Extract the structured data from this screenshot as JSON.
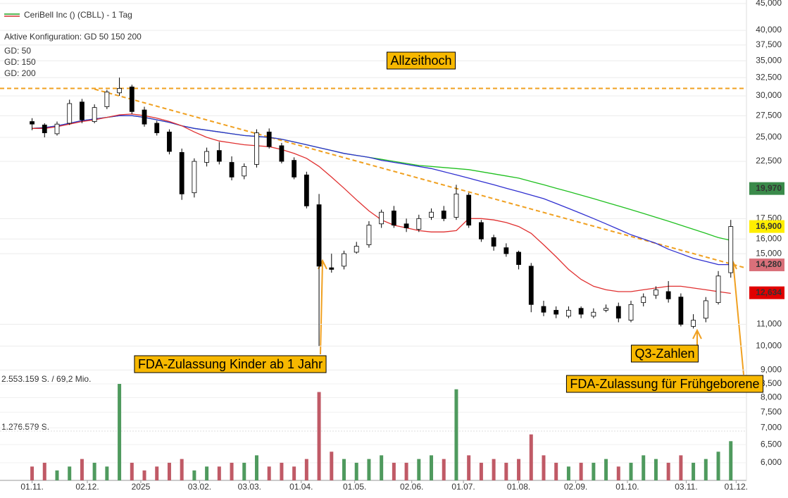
{
  "chart_data": {
    "type": "candlestick",
    "title": "CeriBell Inc () (CBLL) - 1 Tag",
    "subtitle": "Aktive Konfiguration: GD 50 150 200",
    "x": [
      0,
      7,
      14,
      21,
      28,
      35,
      42,
      49,
      56,
      63,
      70,
      77,
      84,
      91,
      98,
      105,
      112,
      119,
      126,
      133,
      140,
      147,
      154,
      161,
      168,
      175,
      182,
      189,
      196,
      203,
      210,
      217,
      224,
      231,
      238,
      245,
      252,
      259,
      266,
      273,
      280,
      287,
      294,
      301,
      308,
      315,
      322,
      329,
      336,
      343,
      350,
      357,
      364,
      371,
      378,
      385,
      392
    ],
    "open": [
      26.8,
      26.4,
      25.4,
      26.6,
      29.2,
      26.8,
      28.6,
      30.4,
      31.2,
      28.2,
      26.6,
      25.6,
      23.4,
      19.6,
      22.4,
      23.6,
      22.4,
      21.1,
      22.2,
      25.6,
      24.1,
      22.6,
      21.2,
      18.6,
      14.1,
      14.2,
      15.1,
      15.6,
      17.1,
      18.1,
      17.1,
      16.7,
      17.6,
      18.1,
      17.6,
      19.4,
      17.2,
      16.1,
      15.4,
      15.1,
      14.2,
      11.9,
      11.7,
      11.4,
      11.8,
      11.4,
      11.7,
      11.9,
      11.2,
      12.1,
      12.5,
      12.7,
      12.4,
      10.9,
      11.3,
      12.1,
      13.8
    ],
    "high": [
      27.2,
      26.6,
      26.8,
      29.5,
      29.6,
      28.9,
      30.8,
      32.5,
      31.5,
      28.6,
      26.9,
      25.9,
      23.8,
      22.8,
      23.9,
      24.5,
      23,
      22.3,
      25.9,
      26,
      24.4,
      22.9,
      21.5,
      19.5,
      15,
      15.2,
      15.8,
      17.3,
      18.2,
      18.5,
      17.5,
      17.8,
      18.3,
      18.5,
      20.3,
      19.6,
      17.4,
      16.3,
      15.7,
      15.2,
      14.4,
      12.2,
      11.9,
      11.9,
      11.9,
      11.8,
      12,
      12.1,
      12.2,
      12.6,
      13,
      13.3,
      12.6,
      11.5,
      12.4,
      13.9,
      17.4
    ],
    "low": [
      25.8,
      25,
      25.2,
      26.4,
      26.6,
      26.6,
      28.3,
      30,
      27.7,
      26.2,
      25.2,
      23.2,
      19,
      19.2,
      22,
      22.2,
      20.7,
      20.8,
      21.9,
      23.8,
      22.3,
      20.8,
      18.3,
      10,
      13.8,
      14,
      15,
      15.4,
      16.8,
      16.8,
      16.5,
      16.5,
      17.4,
      17.3,
      17.4,
      16.8,
      15.8,
      15.2,
      14.8,
      14,
      11.6,
      11.4,
      11.3,
      11.3,
      11.3,
      11.3,
      11.6,
      11.1,
      11.1,
      11.9,
      12.3,
      12.1,
      10.9,
      10.8,
      11.1,
      12,
      13.5
    ],
    "close": [
      26.5,
      25.5,
      26.5,
      29,
      27,
      28.5,
      30.5,
      31,
      28,
      26.5,
      25.5,
      23.5,
      19.5,
      22.5,
      23.5,
      22.5,
      21,
      22,
      25.5,
      24,
      22.5,
      21,
      18.5,
      14.2,
      14,
      15,
      15.5,
      17,
      18,
      17,
      16.8,
      17.5,
      18,
      17.5,
      19.5,
      17,
      16,
      15.5,
      15,
      14.3,
      12,
      11.6,
      11.5,
      11.7,
      11.5,
      11.6,
      11.8,
      11.3,
      12,
      12.4,
      12.8,
      12.3,
      11,
      11.2,
      12.2,
      13.6,
      16.9
    ],
    "up_color": "#ffffff",
    "down_color": "#000000",
    "series": [
      {
        "name": "GD: 50",
        "color": "#e03030",
        "values": [
          26,
          26,
          26.2,
          26.5,
          26.8,
          27,
          27.3,
          27.6,
          27.7,
          27.5,
          27.2,
          26.8,
          26.3,
          25.6,
          25,
          24.6,
          24.4,
          24.2,
          24.1,
          24,
          23.7,
          23.3,
          22.8,
          22,
          21,
          20,
          19,
          18.1,
          17.4,
          17,
          16.8,
          16.6,
          16.5,
          16.5,
          16.6,
          17.5,
          17.5,
          17.4,
          17.2,
          16.9,
          16.4,
          15.6,
          14.8,
          14,
          13.4,
          13,
          12.8,
          12.7,
          12.7,
          12.8,
          12.9,
          13,
          13,
          12.9,
          12.8,
          12.7,
          12.6
        ]
      },
      {
        "name": "GD: 150",
        "color": "#3030d0",
        "values": [
          26,
          26.1,
          26.3,
          26.6,
          26.9,
          27.1,
          27.3,
          27.5,
          27.5,
          27.3,
          27,
          26.7,
          26.3,
          26,
          25.8,
          25.6,
          25.4,
          25.2,
          25.1,
          25,
          24.8,
          24.5,
          24.2,
          23.9,
          23.6,
          23.3,
          23.1,
          22.9,
          22.6,
          22.4,
          22.2,
          22,
          21.8,
          21.5,
          21.2,
          20.9,
          20.6,
          20.3,
          20,
          19.7,
          19.4,
          19.1,
          18.7,
          18.3,
          17.9,
          17.5,
          17.1,
          16.7,
          16.3,
          16,
          15.7,
          15.3,
          15,
          14.7,
          14.5,
          14.3,
          14.3
        ]
      },
      {
        "name": "GD: 200",
        "color": "#20c020",
        "values": [
          26,
          26.1,
          26.3,
          26.6,
          26.9,
          27.1,
          27.3,
          27.5,
          27.5,
          27.3,
          27,
          26.7,
          26.3,
          26,
          25.8,
          25.6,
          25.4,
          25.2,
          25.1,
          25,
          24.8,
          24.5,
          24.2,
          23.9,
          23.6,
          23.3,
          23.1,
          22.9,
          22.7,
          22.5,
          22.3,
          22.1,
          22,
          21.9,
          21.8,
          21.7,
          21.5,
          21.3,
          21.1,
          20.9,
          20.6,
          20.3,
          20,
          19.7,
          19.4,
          19.1,
          18.8,
          18.5,
          18.2,
          17.9,
          17.6,
          17.3,
          17,
          16.7,
          16.4,
          16.1,
          15.9
        ]
      }
    ],
    "log_y": true,
    "ylim": [
      8.6,
      45.7
    ],
    "yticks": [
      {
        "value": 9,
        "label": "9,000"
      },
      {
        "value": 10,
        "label": "10,000"
      },
      {
        "value": 11,
        "label": "11,000"
      },
      {
        "value": 15,
        "label": "15,000"
      },
      {
        "value": 16,
        "label": "16,000"
      },
      {
        "value": 17.5,
        "label": "17,500"
      },
      {
        "value": 22.5,
        "label": "22,500"
      },
      {
        "value": 25,
        "label": "25,000"
      },
      {
        "value": 27.5,
        "label": "27,500"
      },
      {
        "value": 30,
        "label": "30,000"
      },
      {
        "value": 32.5,
        "label": "32,500"
      },
      {
        "value": 35,
        "label": "35,000"
      },
      {
        "value": 37.5,
        "label": "37,500"
      },
      {
        "value": 40,
        "label": "40,000"
      },
      {
        "value": 45,
        "label": "45,000"
      }
    ],
    "grid": true,
    "xlim": [
      -18,
      400
    ],
    "xticks": [
      {
        "value": 0,
        "label": "01.11."
      },
      {
        "value": 31,
        "label": "02.12."
      },
      {
        "value": 61,
        "label": "2025"
      },
      {
        "value": 94,
        "label": "03.02."
      },
      {
        "value": 122,
        "label": "03.03."
      },
      {
        "value": 151,
        "label": "01.04."
      },
      {
        "value": 181,
        "label": "01.05."
      },
      {
        "value": 213,
        "label": "02.06."
      },
      {
        "value": 242,
        "label": "01.07."
      },
      {
        "value": 273,
        "label": "01.08."
      },
      {
        "value": 305,
        "label": "02.09."
      },
      {
        "value": 334,
        "label": "01.10."
      },
      {
        "value": 367,
        "label": "03.11."
      },
      {
        "value": 395,
        "label": "01.12."
      }
    ],
    "hline": {
      "value": 31,
      "color": "#f0a020"
    },
    "trendline": {
      "x": [
        35,
        400
      ],
      "y": [
        30.9,
        14.1
      ],
      "color": "#f0a020"
    },
    "price_tags": [
      {
        "value": 19.97,
        "label": "19,970",
        "color": "#3a8a4a"
      },
      {
        "value": 16.9,
        "label": "16,900",
        "color": "#ffee00"
      },
      {
        "value": 14.28,
        "label": "14,280",
        "color": "#d9707a"
      },
      {
        "value": 12.634,
        "label": "12,634",
        "color": "#e00000"
      }
    ],
    "volume": {
      "values": [
        5.9,
        6.0,
        5.8,
        5.9,
        6.1,
        6.0,
        5.9,
        8.5,
        6.0,
        5.8,
        5.9,
        6.0,
        6.1,
        5.8,
        5.9,
        5.9,
        6.0,
        6.0,
        6.2,
        5.9,
        6.0,
        5.9,
        6.1,
        8.2,
        6.3,
        6.1,
        6.0,
        6.1,
        6.2,
        6.0,
        6.0,
        6.1,
        6.2,
        6.1,
        8.3,
        6.2,
        6.0,
        6.1,
        6.0,
        6.1,
        6.8,
        6.2,
        6.0,
        5.9,
        6.0,
        6.0,
        6.1,
        5.9,
        6.0,
        6.2,
        6.1,
        6.0,
        6.2,
        6.0,
        6.1,
        6.3,
        6.6
      ],
      "log": true,
      "ylim": [
        5.55,
        8.5
      ],
      "yticks": [
        {
          "value": 6,
          "label": "6,000"
        },
        {
          "value": 6.5,
          "label": "6,500"
        },
        {
          "value": 7,
          "label": "7,000"
        },
        {
          "value": 7.5,
          "label": "7,500"
        },
        {
          "value": 8,
          "label": "8,000"
        },
        {
          "value": 8.5,
          "label": "8,500"
        }
      ],
      "labels": [
        "2.553.159 S. / 69,2 Mio.",
        "1.276.579 S."
      ],
      "up_color": "#4f9a5e",
      "down_color": "#c05a66"
    },
    "annotations": [
      {
        "text": "Allzeithoch"
      },
      {
        "text": "FDA-Zulassung Kinder ab 1 Jahr"
      },
      {
        "text": "Q3-Zahlen"
      },
      {
        "text": "FDA-Zulassung für Frühgeborene"
      }
    ]
  }
}
